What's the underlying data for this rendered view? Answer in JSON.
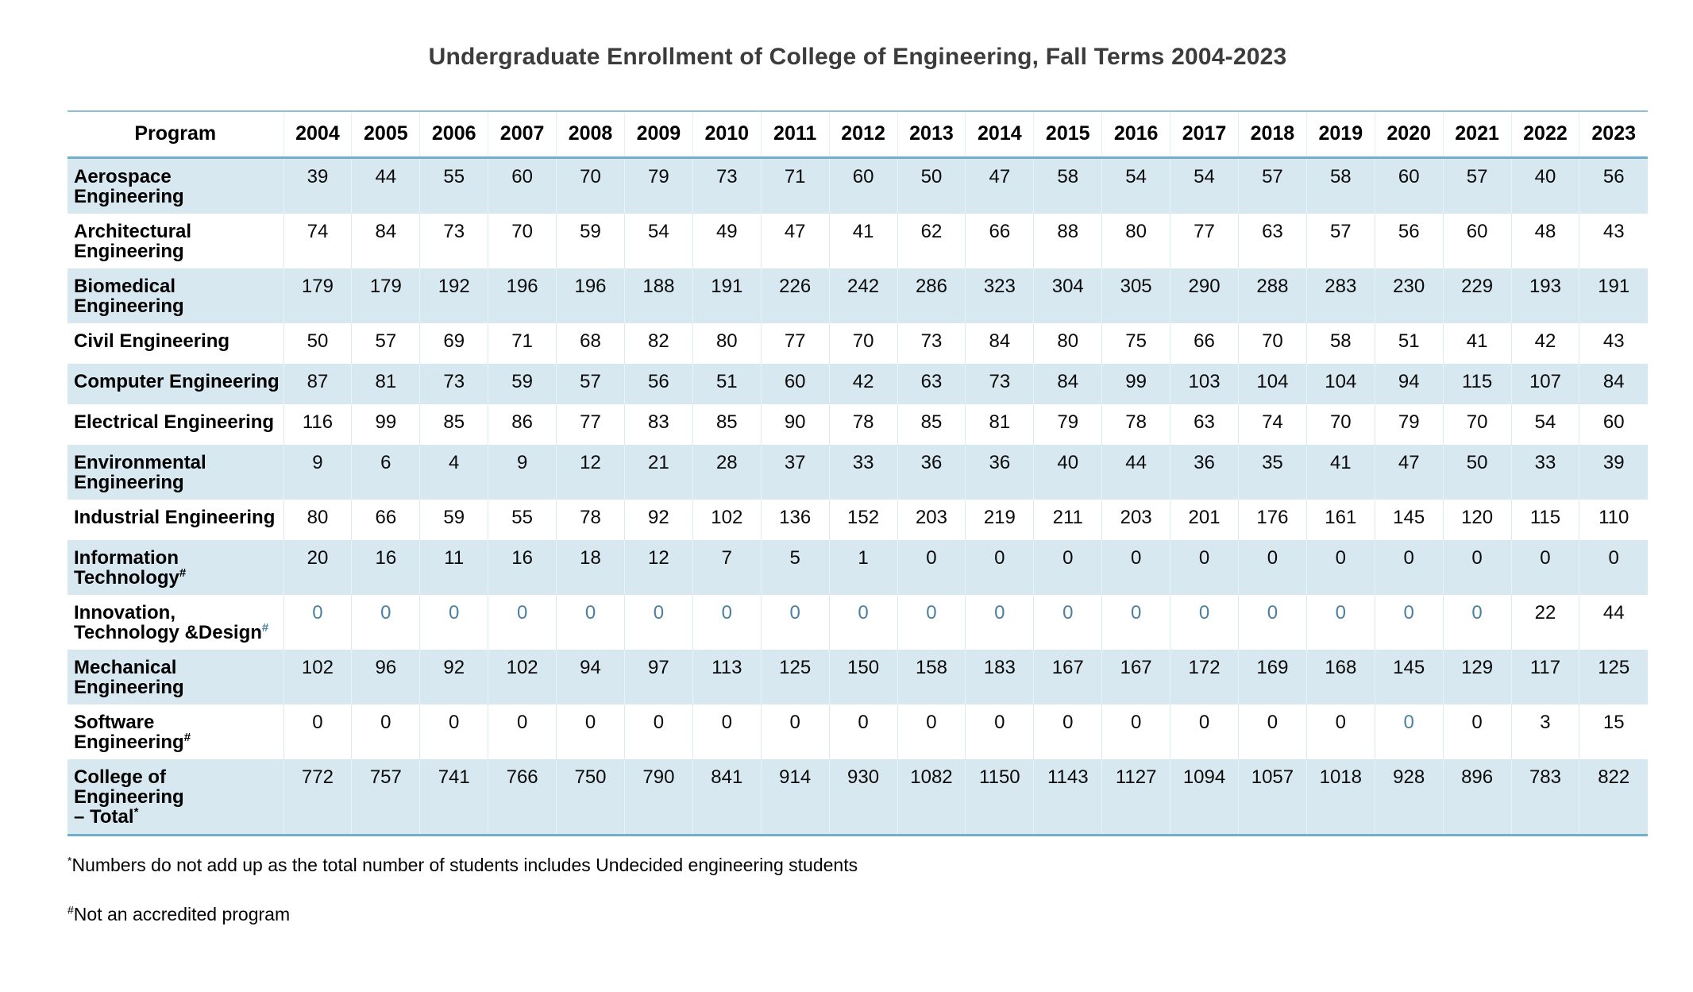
{
  "title": "Undergraduate Enrollment of College of Engineering, Fall Terms 2004-2023",
  "table": {
    "program_header": "Program",
    "years": [
      "2004",
      "2005",
      "2006",
      "2007",
      "2008",
      "2009",
      "2010",
      "2011",
      "2012",
      "2013",
      "2014",
      "2015",
      "2016",
      "2017",
      "2018",
      "2019",
      "2020",
      "2021",
      "2022",
      "2023"
    ],
    "rows": [
      {
        "id": "aerospace-engineering",
        "label_lines": [
          "Aerospace",
          "Engineering"
        ],
        "values": [
          39,
          44,
          55,
          60,
          70,
          79,
          73,
          71,
          60,
          50,
          47,
          58,
          54,
          54,
          57,
          58,
          60,
          57,
          40,
          56
        ]
      },
      {
        "id": "architectural-engineering",
        "label_lines": [
          "Architectural",
          "Engineering"
        ],
        "values": [
          74,
          84,
          73,
          70,
          59,
          54,
          49,
          47,
          41,
          62,
          66,
          88,
          80,
          77,
          63,
          57,
          56,
          60,
          48,
          43
        ]
      },
      {
        "id": "biomedical-engineering",
        "label_lines": [
          "Biomedical",
          "Engineering"
        ],
        "values": [
          179,
          179,
          192,
          196,
          196,
          188,
          191,
          226,
          242,
          286,
          323,
          304,
          305,
          290,
          288,
          283,
          230,
          229,
          193,
          191
        ]
      },
      {
        "id": "civil-engineering",
        "label_lines": [
          "Civil Engineering"
        ],
        "values": [
          50,
          57,
          69,
          71,
          68,
          82,
          80,
          77,
          70,
          73,
          84,
          80,
          75,
          66,
          70,
          58,
          51,
          41,
          42,
          43
        ]
      },
      {
        "id": "computer-engineering",
        "label_lines": [
          "Computer Engineering"
        ],
        "values": [
          87,
          81,
          73,
          59,
          57,
          56,
          51,
          60,
          42,
          63,
          73,
          84,
          99,
          103,
          104,
          104,
          94,
          115,
          107,
          84
        ]
      },
      {
        "id": "electrical-engineering",
        "label_lines": [
          "Electrical Engineering"
        ],
        "values": [
          116,
          99,
          85,
          86,
          77,
          83,
          85,
          90,
          78,
          85,
          81,
          79,
          78,
          63,
          74,
          70,
          79,
          70,
          54,
          60
        ]
      },
      {
        "id": "environmental-engineering",
        "label_lines": [
          "Environmental",
          "Engineering"
        ],
        "values": [
          9,
          6,
          4,
          9,
          12,
          21,
          28,
          37,
          33,
          36,
          36,
          40,
          44,
          36,
          35,
          41,
          47,
          50,
          33,
          39
        ]
      },
      {
        "id": "industrial-engineering",
        "label_lines": [
          "Industrial Engineering"
        ],
        "values": [
          80,
          66,
          59,
          55,
          78,
          92,
          102,
          136,
          152,
          203,
          219,
          211,
          203,
          201,
          176,
          161,
          145,
          120,
          115,
          110
        ]
      },
      {
        "id": "information-technology",
        "label_lines": [
          "Information",
          "Technology"
        ],
        "sup": {
          "text": "#",
          "accent": false
        },
        "values": [
          20,
          16,
          11,
          16,
          18,
          12,
          7,
          5,
          1,
          0,
          0,
          0,
          0,
          0,
          0,
          0,
          0,
          0,
          0,
          0
        ]
      },
      {
        "id": "innovation-technology-design",
        "label_lines": [
          "Innovation,",
          "Technology &Design"
        ],
        "sup": {
          "text": "#",
          "accent": true
        },
        "values": [
          0,
          0,
          0,
          0,
          0,
          0,
          0,
          0,
          0,
          0,
          0,
          0,
          0,
          0,
          0,
          0,
          0,
          0,
          22,
          44
        ],
        "accent_cells": [
          0,
          1,
          2,
          3,
          4,
          5,
          6,
          7,
          8,
          9,
          10,
          11,
          12,
          13,
          14,
          15,
          16,
          17
        ]
      },
      {
        "id": "mechanical-engineering",
        "label_lines": [
          "Mechanical",
          "Engineering"
        ],
        "values": [
          102,
          96,
          92,
          102,
          94,
          97,
          113,
          125,
          150,
          158,
          183,
          167,
          167,
          172,
          169,
          168,
          145,
          129,
          117,
          125
        ]
      },
      {
        "id": "software-engineering",
        "label_lines": [
          "Software",
          "Engineering"
        ],
        "sup": {
          "text": "#",
          "accent": false
        },
        "values": [
          0,
          0,
          0,
          0,
          0,
          0,
          0,
          0,
          0,
          0,
          0,
          0,
          0,
          0,
          0,
          0,
          0,
          0,
          3,
          15
        ],
        "accent_cells": [
          16
        ]
      },
      {
        "id": "college-total",
        "label_lines": [
          "College of Engineering",
          "– Total"
        ],
        "sup": {
          "text": "*",
          "accent": false
        },
        "values": [
          772,
          757,
          741,
          766,
          750,
          790,
          841,
          914,
          930,
          1082,
          1150,
          1143,
          1127,
          1094,
          1057,
          1018,
          928,
          896,
          783,
          822
        ]
      }
    ]
  },
  "footnotes": [
    {
      "marker": "*",
      "text": "Numbers do not add up as the total number of students includes Undecided engineering students"
    },
    {
      "marker": "#",
      "text": "Not an accredited program"
    }
  ],
  "colors": {
    "stripe": "#d8e8f1",
    "rule": "#74aecd",
    "rule_light": "#8fc0d6",
    "accent_text": "#4a80a0",
    "title_text": "#3c3c3c"
  }
}
